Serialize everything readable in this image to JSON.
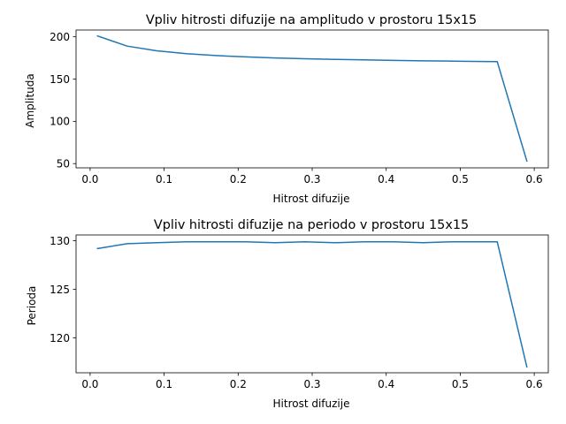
{
  "chart_data": [
    {
      "type": "line",
      "title": "Vpliv hitrosti difuzije na amplitudo v prostoru 15x15",
      "xlabel": "Hitrost difuzije",
      "ylabel": "Amplituda",
      "xlim": [
        -0.019,
        0.619
      ],
      "ylim": [
        45,
        208
      ],
      "xticks": [
        0.0,
        0.1,
        0.2,
        0.3,
        0.4,
        0.5,
        0.6
      ],
      "xtick_labels": [
        "0.0",
        "0.1",
        "0.2",
        "0.3",
        "0.4",
        "0.5",
        "0.6"
      ],
      "yticks": [
        50,
        100,
        150,
        200
      ],
      "ytick_labels": [
        "50",
        "100",
        "150",
        "200"
      ],
      "grid": false,
      "color": "#1f77b4",
      "series": [
        {
          "x": [
            0.01,
            0.05,
            0.09,
            0.13,
            0.17,
            0.21,
            0.25,
            0.29,
            0.33,
            0.37,
            0.41,
            0.45,
            0.49,
            0.53,
            0.55,
            0.59
          ],
          "y": [
            201,
            189,
            183.5,
            180,
            177.8,
            176.3,
            175,
            174,
            173.3,
            172.7,
            172.1,
            171.6,
            171.2,
            170.8,
            170.6,
            53
          ]
        }
      ]
    },
    {
      "type": "line",
      "title": "Vpliv hitrosti difuzije na periodo v prostoru 15x15",
      "xlabel": "Hitrost difuzije",
      "ylabel": "Perioda",
      "xlim": [
        -0.019,
        0.619
      ],
      "ylim": [
        116.4,
        130.6
      ],
      "xticks": [
        0.0,
        0.1,
        0.2,
        0.3,
        0.4,
        0.5,
        0.6
      ],
      "xtick_labels": [
        "0.0",
        "0.1",
        "0.2",
        "0.3",
        "0.4",
        "0.5",
        "0.6"
      ],
      "yticks": [
        120,
        125,
        130
      ],
      "ytick_labels": [
        "120",
        "125",
        "130"
      ],
      "grid": false,
      "color": "#1f77b4",
      "series": [
        {
          "x": [
            0.01,
            0.05,
            0.09,
            0.13,
            0.17,
            0.21,
            0.25,
            0.29,
            0.33,
            0.37,
            0.41,
            0.45,
            0.49,
            0.53,
            0.55,
            0.59
          ],
          "y": [
            129.2,
            129.7,
            129.8,
            129.9,
            129.9,
            129.9,
            129.8,
            129.9,
            129.8,
            129.9,
            129.9,
            129.8,
            129.9,
            129.9,
            129.9,
            117
          ]
        }
      ]
    }
  ]
}
